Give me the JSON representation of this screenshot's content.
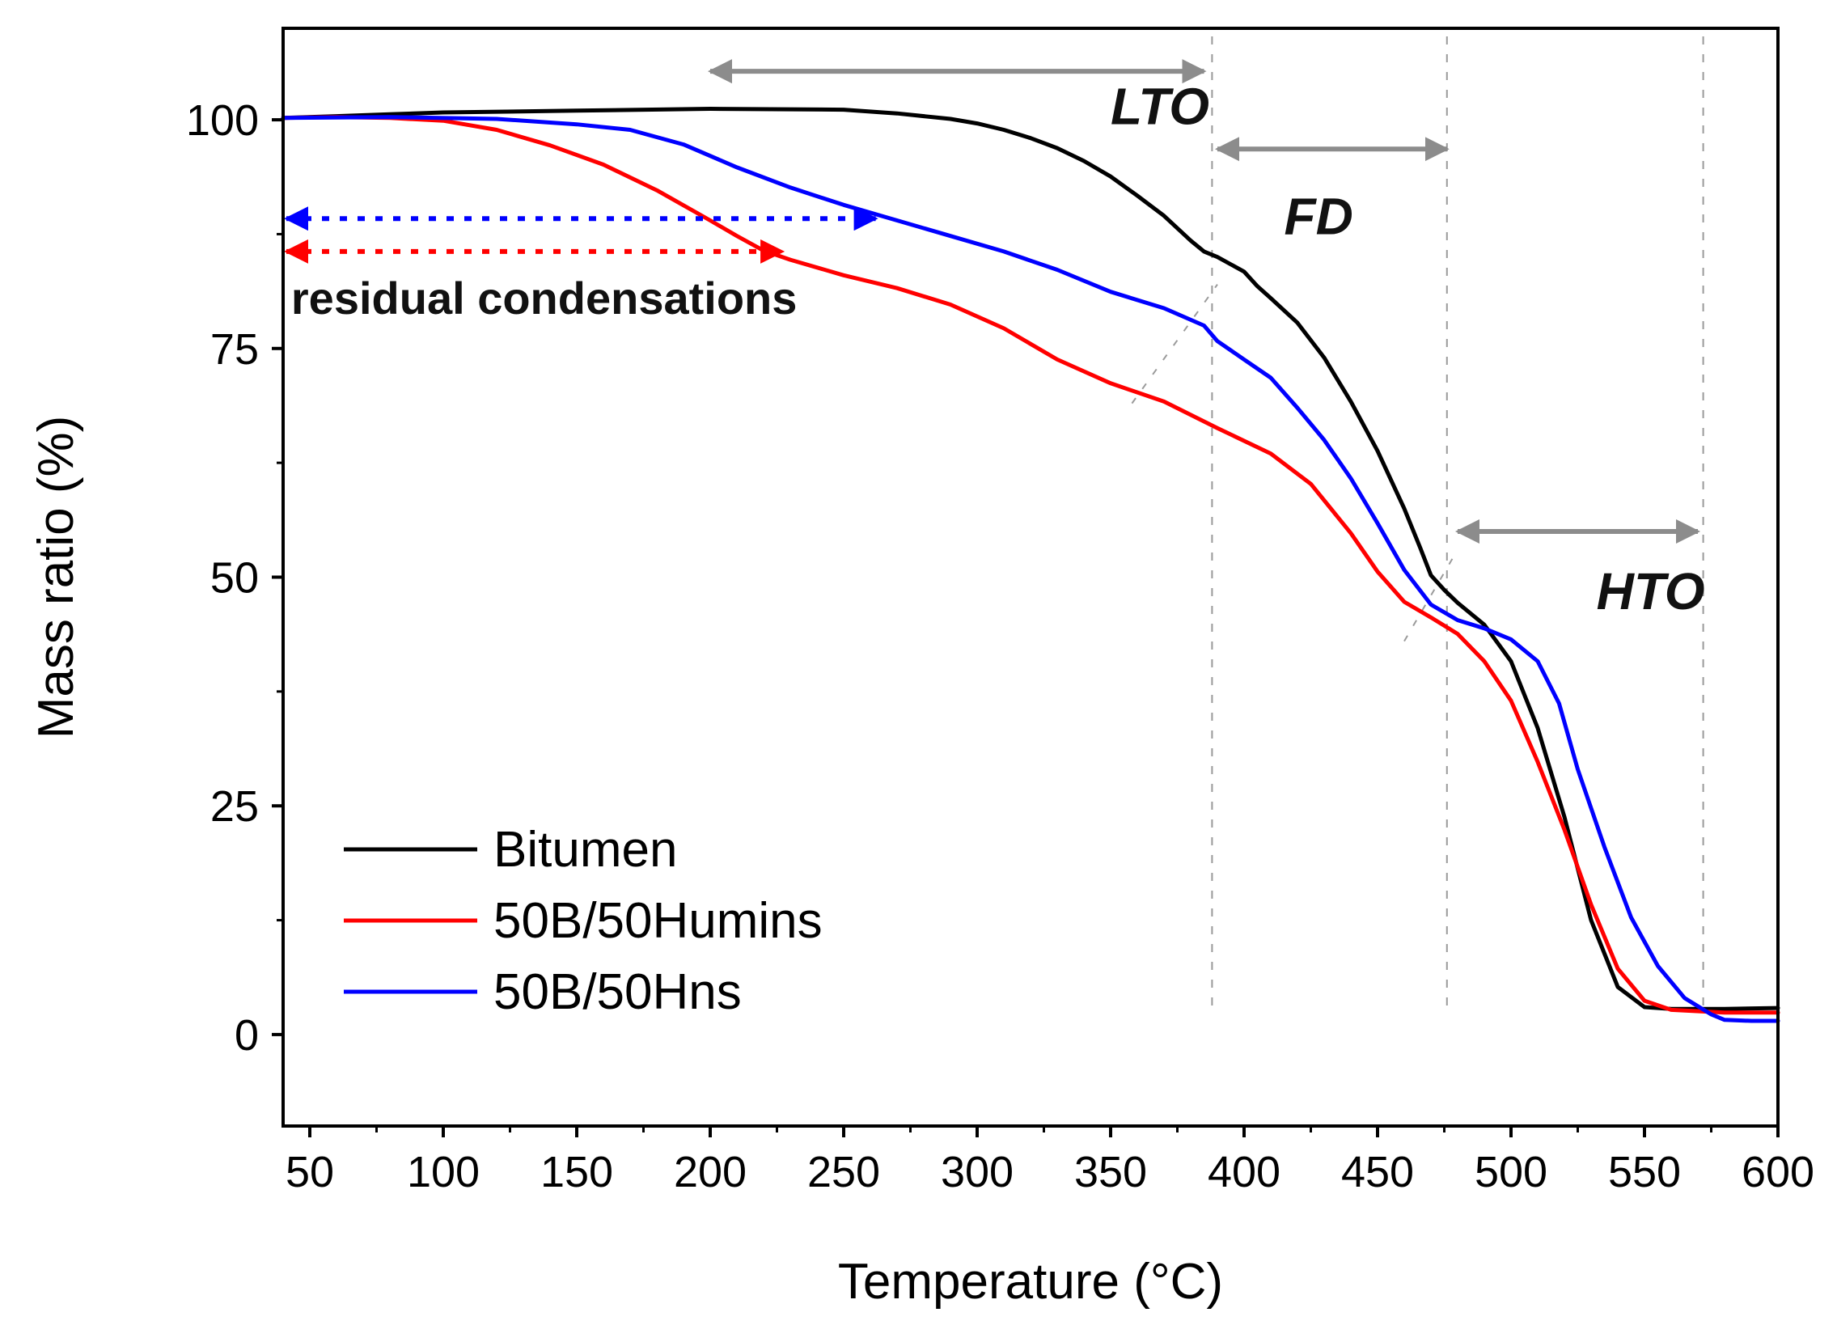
{
  "chart_data": {
    "type": "line",
    "title": "",
    "xlabel": "Temperature (°C)",
    "ylabel": "Mass ratio (%)",
    "xlim": [
      40,
      600
    ],
    "ylim": [
      -10,
      110
    ],
    "x_ticks": [
      50,
      100,
      150,
      200,
      250,
      300,
      350,
      400,
      450,
      500,
      550,
      600
    ],
    "y_ticks": [
      0,
      25,
      50,
      75,
      100
    ],
    "legend_position": "bottom-left",
    "series": [
      {
        "name": "Bitumen",
        "color": "#000000",
        "points": [
          [
            40,
            100.2
          ],
          [
            60,
            100.4
          ],
          [
            80,
            100.6
          ],
          [
            100,
            100.8
          ],
          [
            150,
            101.0
          ],
          [
            200,
            101.2
          ],
          [
            250,
            101.1
          ],
          [
            270,
            100.7
          ],
          [
            290,
            100.1
          ],
          [
            300,
            99.6
          ],
          [
            310,
            98.9
          ],
          [
            320,
            98.0
          ],
          [
            330,
            96.9
          ],
          [
            340,
            95.5
          ],
          [
            350,
            93.8
          ],
          [
            360,
            91.7
          ],
          [
            370,
            89.5
          ],
          [
            380,
            86.8
          ],
          [
            385,
            85.6
          ],
          [
            390,
            85.0
          ],
          [
            400,
            83.4
          ],
          [
            405,
            81.8
          ],
          [
            410,
            80.5
          ],
          [
            420,
            77.8
          ],
          [
            430,
            74.0
          ],
          [
            440,
            69.2
          ],
          [
            450,
            63.8
          ],
          [
            460,
            57.5
          ],
          [
            466,
            53.2
          ],
          [
            470,
            50.2
          ],
          [
            475,
            48.6
          ],
          [
            480,
            47.2
          ],
          [
            490,
            44.8
          ],
          [
            500,
            40.8
          ],
          [
            510,
            33.5
          ],
          [
            520,
            23.8
          ],
          [
            530,
            12.5
          ],
          [
            540,
            5.2
          ],
          [
            550,
            3.0
          ],
          [
            560,
            2.8
          ],
          [
            580,
            2.8
          ],
          [
            600,
            2.9
          ]
        ]
      },
      {
        "name": "50B/50Humins",
        "color": "#ff0000",
        "points": [
          [
            40,
            100.2
          ],
          [
            60,
            100.3
          ],
          [
            80,
            100.2
          ],
          [
            100,
            99.9
          ],
          [
            120,
            98.9
          ],
          [
            140,
            97.2
          ],
          [
            160,
            95.1
          ],
          [
            180,
            92.3
          ],
          [
            200,
            89.0
          ],
          [
            210,
            87.3
          ],
          [
            220,
            85.7
          ],
          [
            230,
            84.7
          ],
          [
            250,
            83.0
          ],
          [
            270,
            81.6
          ],
          [
            290,
            79.8
          ],
          [
            310,
            77.2
          ],
          [
            330,
            73.8
          ],
          [
            350,
            71.2
          ],
          [
            370,
            69.2
          ],
          [
            390,
            66.3
          ],
          [
            410,
            63.5
          ],
          [
            425,
            60.2
          ],
          [
            440,
            54.8
          ],
          [
            450,
            50.6
          ],
          [
            460,
            47.3
          ],
          [
            470,
            45.6
          ],
          [
            480,
            43.8
          ],
          [
            490,
            40.8
          ],
          [
            500,
            36.5
          ],
          [
            510,
            29.8
          ],
          [
            520,
            22.4
          ],
          [
            530,
            14.2
          ],
          [
            540,
            7.2
          ],
          [
            550,
            3.7
          ],
          [
            560,
            2.7
          ],
          [
            580,
            2.4
          ],
          [
            600,
            2.4
          ]
        ]
      },
      {
        "name": "50B/50Hns",
        "color": "#0000ff",
        "points": [
          [
            40,
            100.2
          ],
          [
            80,
            100.3
          ],
          [
            120,
            100.1
          ],
          [
            150,
            99.5
          ],
          [
            170,
            98.9
          ],
          [
            190,
            97.3
          ],
          [
            210,
            94.8
          ],
          [
            230,
            92.6
          ],
          [
            250,
            90.7
          ],
          [
            270,
            89.0
          ],
          [
            290,
            87.3
          ],
          [
            310,
            85.6
          ],
          [
            330,
            83.6
          ],
          [
            350,
            81.2
          ],
          [
            370,
            79.4
          ],
          [
            385,
            77.5
          ],
          [
            390,
            75.8
          ],
          [
            400,
            73.8
          ],
          [
            410,
            71.8
          ],
          [
            420,
            68.5
          ],
          [
            430,
            65.0
          ],
          [
            440,
            60.8
          ],
          [
            450,
            55.9
          ],
          [
            460,
            50.8
          ],
          [
            470,
            47.0
          ],
          [
            480,
            45.3
          ],
          [
            490,
            44.4
          ],
          [
            500,
            43.2
          ],
          [
            510,
            40.8
          ],
          [
            518,
            36.2
          ],
          [
            525,
            29.0
          ],
          [
            535,
            20.5
          ],
          [
            545,
            12.8
          ],
          [
            555,
            7.5
          ],
          [
            565,
            4.0
          ],
          [
            575,
            2.2
          ],
          [
            580,
            1.6
          ],
          [
            590,
            1.5
          ],
          [
            600,
            1.5
          ]
        ]
      }
    ],
    "region_boundaries": [
      388,
      476,
      572
    ],
    "regions": [
      {
        "label": "LTO",
        "x_from": 200,
        "x_to": 385,
        "arrow_y": 105.3,
        "label_x": 350,
        "label_y": 99.5
      },
      {
        "label": "FD",
        "x_from": 390,
        "x_to": 476,
        "arrow_y": 96.8,
        "label_x": 415,
        "label_y": 87.5
      },
      {
        "label": "HTO",
        "x_from": 480,
        "x_to": 570,
        "arrow_y": 55.0,
        "label_x": 532,
        "label_y": 46.5
      }
    ],
    "residual_arrows": [
      {
        "series": "50B/50Hns",
        "color": "#0000ff",
        "x_from": 40,
        "x_to": 262,
        "y": 89.2
      },
      {
        "series": "50B/50Humins",
        "color": "#ff0000",
        "x_from": 40,
        "x_to": 227,
        "y": 85.6
      }
    ],
    "annotation": {
      "text": "residual condensations",
      "x": 43,
      "y": 78.8
    }
  }
}
